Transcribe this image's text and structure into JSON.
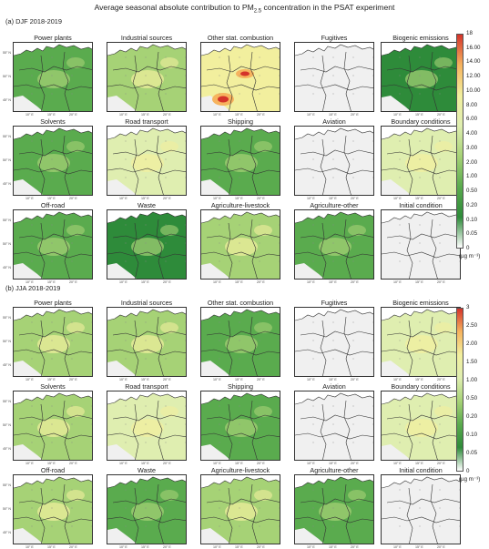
{
  "title_main": "Average seasonal absolute contribution to PM",
  "title_sub": "2.5",
  "title_tail": " concentration in the PSAT experiment",
  "sections": [
    {
      "label": "(a) DJF 2018-2019",
      "panels": [
        {
          "name": "Power plants",
          "level": 0.42
        },
        {
          "name": "Industrial sources",
          "level": 0.55
        },
        {
          "name": "Other stat. combustion",
          "level": 0.78,
          "hot": true
        },
        {
          "name": "Fugitives",
          "level": 0.0
        },
        {
          "name": "Biogenic emissions",
          "level": 0.38
        },
        {
          "name": "Solvents",
          "level": 0.4
        },
        {
          "name": "Road transport",
          "level": 0.6
        },
        {
          "name": "Shipping",
          "level": 0.42
        },
        {
          "name": "Aviation",
          "level": 0.0
        },
        {
          "name": "Boundary conditions",
          "level": 0.65
        },
        {
          "name": "Off-road",
          "level": 0.48
        },
        {
          "name": "Waste",
          "level": 0.35
        },
        {
          "name": "Agriculture-livestock",
          "level": 0.55
        },
        {
          "name": "Agriculture-other",
          "level": 0.4
        },
        {
          "name": "Initial condition",
          "level": 0.0
        }
      ],
      "colorbar": {
        "ticks": [
          "18",
          "16.00",
          "14.00",
          "12.00",
          "10.00",
          "8.00",
          "6.00",
          "4.00",
          "3.00",
          "2.00",
          "1.00",
          "0.50",
          "0.20",
          "0.10",
          "0.05",
          "0"
        ],
        "unit": "(µg m⁻³)"
      }
    },
    {
      "label": "(b) JJA 2018-2019",
      "panels": [
        {
          "name": "Power plants",
          "level": 0.5
        },
        {
          "name": "Industrial sources",
          "level": 0.58
        },
        {
          "name": "Other stat. combustion",
          "level": 0.48
        },
        {
          "name": "Fugitives",
          "level": 0.0
        },
        {
          "name": "Biogenic emissions",
          "level": 0.66
        },
        {
          "name": "Solvents",
          "level": 0.52
        },
        {
          "name": "Road transport",
          "level": 0.62
        },
        {
          "name": "Shipping",
          "level": 0.4
        },
        {
          "name": "Aviation",
          "level": 0.0
        },
        {
          "name": "Boundary conditions",
          "level": 0.62
        },
        {
          "name": "Off-road",
          "level": 0.52
        },
        {
          "name": "Waste",
          "level": 0.46
        },
        {
          "name": "Agriculture-livestock",
          "level": 0.55
        },
        {
          "name": "Agriculture-other",
          "level": 0.4
        },
        {
          "name": "Initial condition",
          "level": 0.0
        }
      ],
      "colorbar": {
        "ticks": [
          "3",
          "2.50",
          "2.00",
          "1.50",
          "1.00",
          "0.50",
          "0.20",
          "0.10",
          "0.05",
          "0"
        ],
        "unit": "(µg m⁻³)"
      }
    }
  ],
  "lat_labels": [
    "55° N",
    "50° N",
    "45° N"
  ],
  "lon_labels": [
    "10° E",
    "15° E",
    "20° E"
  ],
  "colors": {
    "dark_green": "#2e8b3a",
    "green": "#5aab4e",
    "light_green": "#a6d276",
    "pale_green": "#dfeeb0",
    "yellow": "#f2ef9e",
    "orange": "#f6b35e",
    "red": "#d4332a",
    "blank": "#f0f0f0"
  }
}
